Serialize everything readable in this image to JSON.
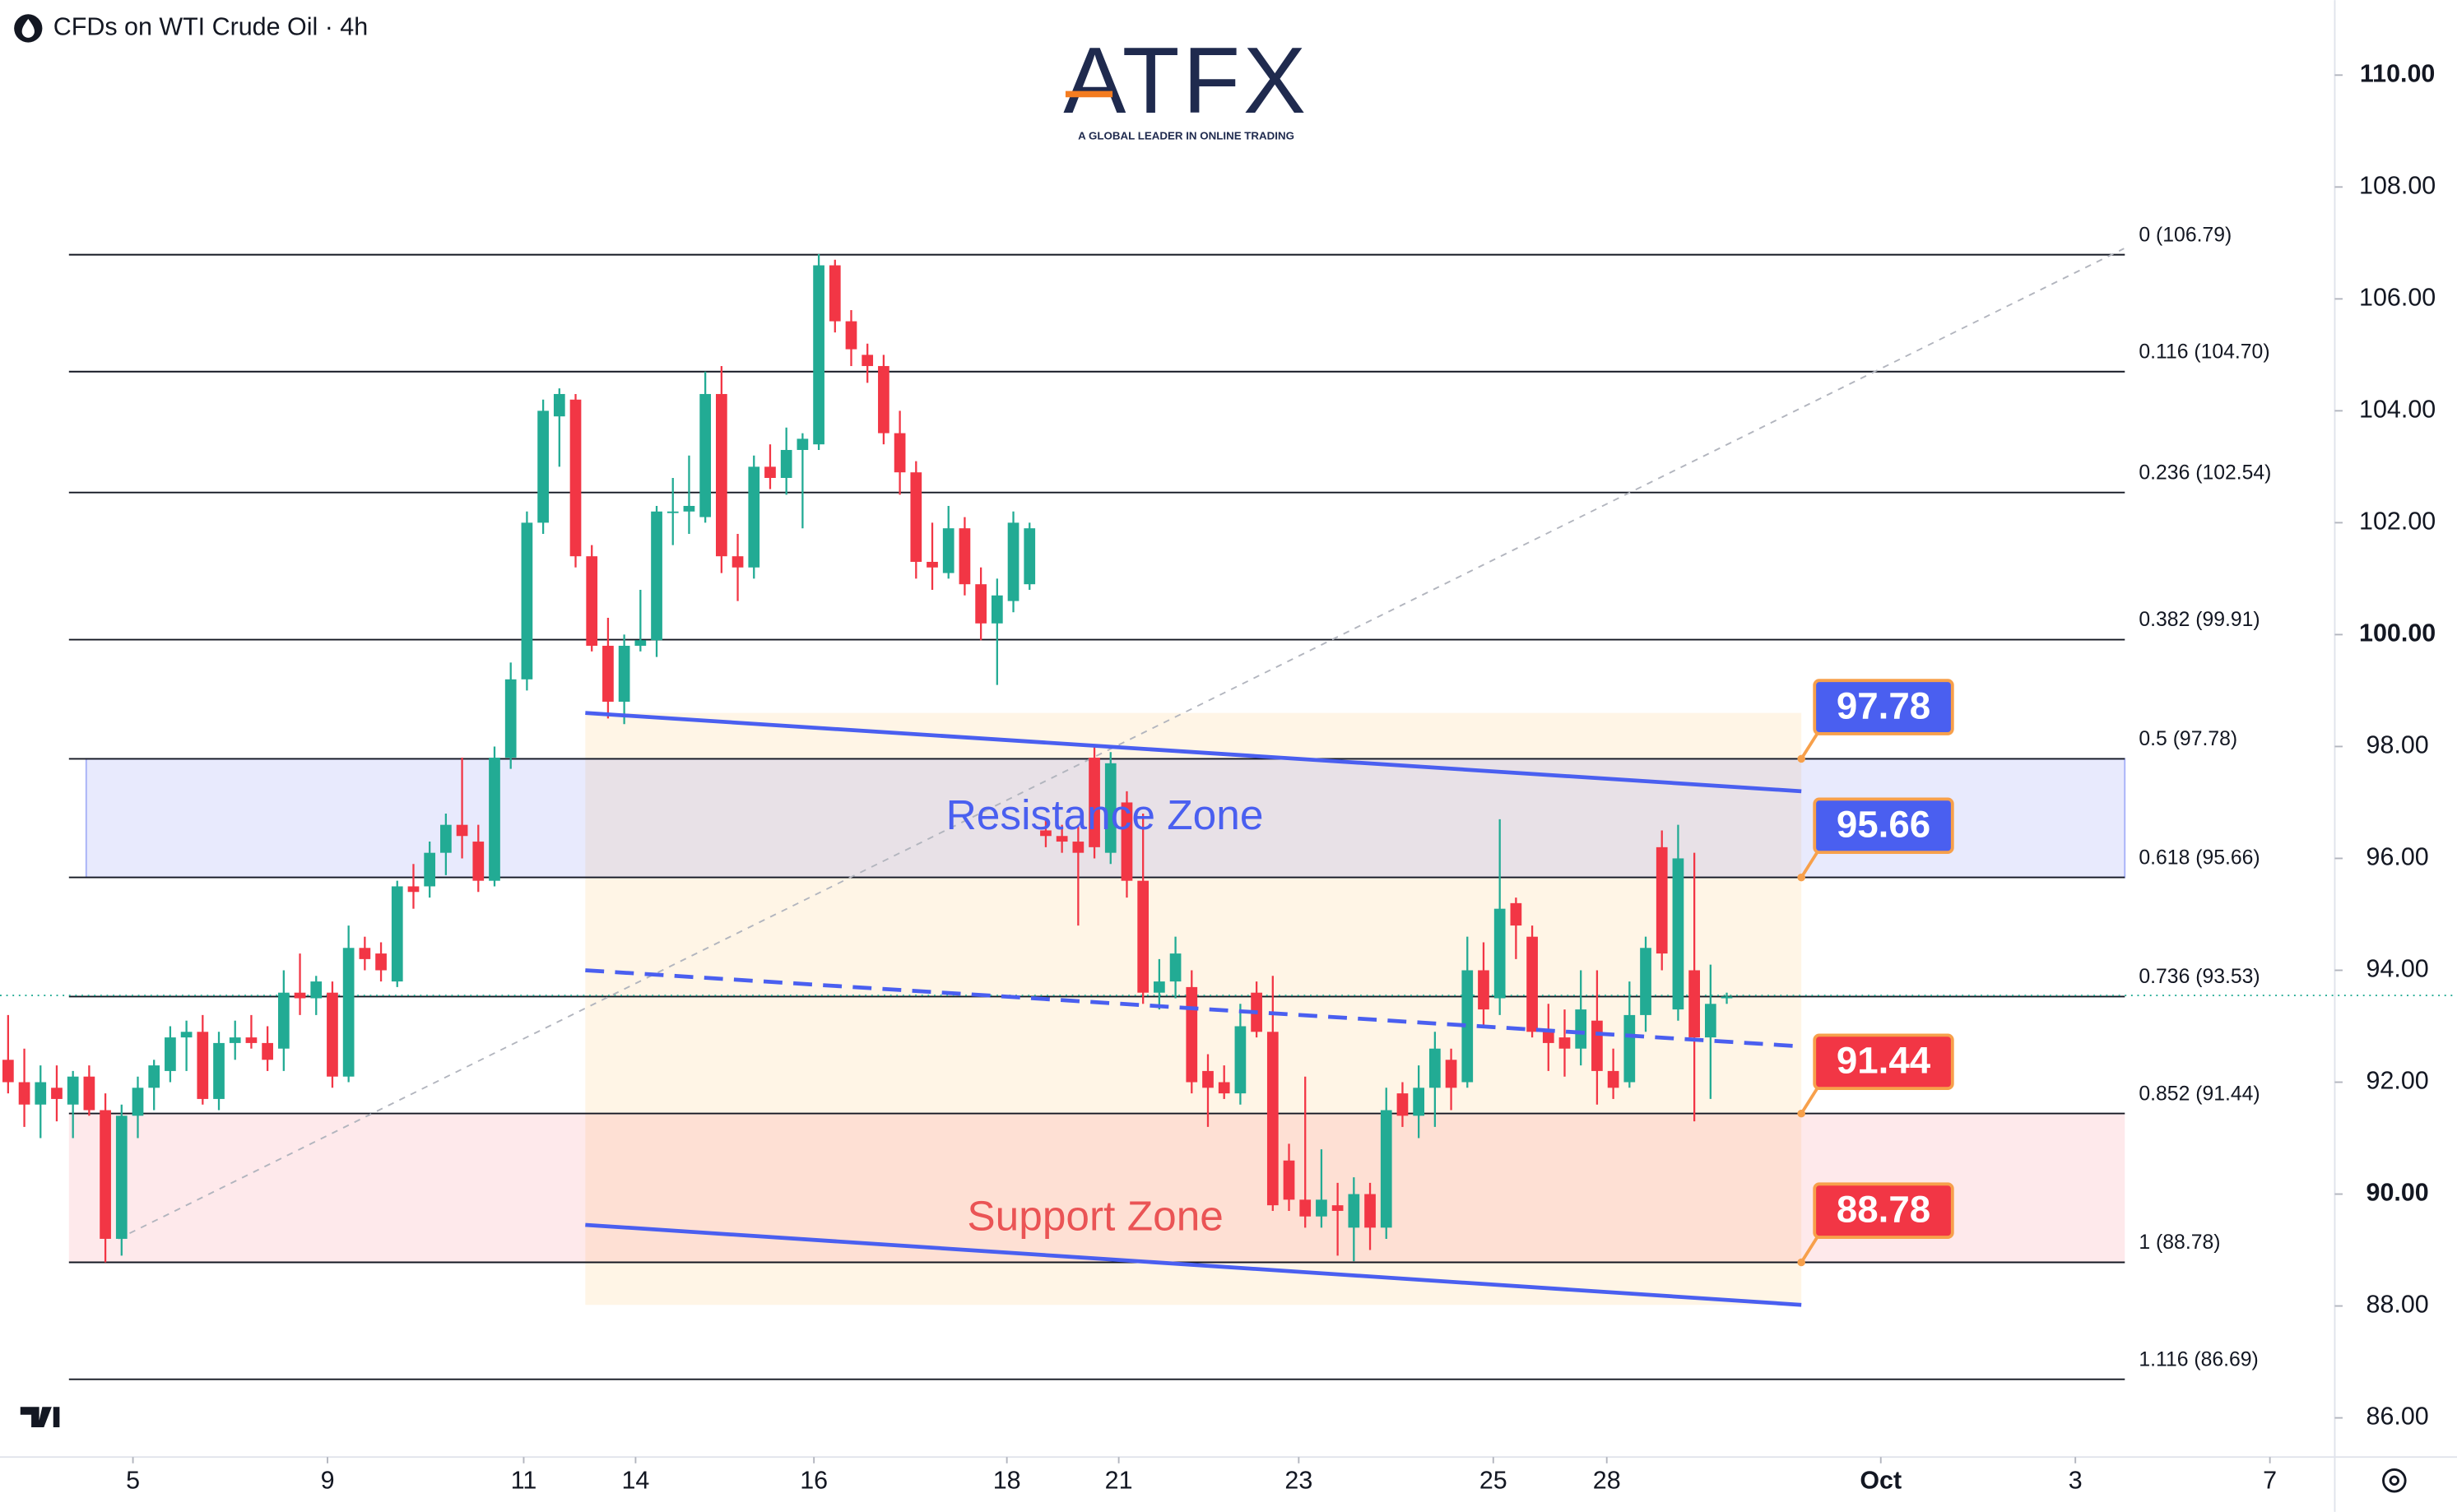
{
  "header": {
    "title": "CFDs on WTI Crude Oil · 4h"
  },
  "logo": {
    "name": "ATFX",
    "tagline": "A GLOBAL LEADER IN ONLINE TRADING"
  },
  "chart_data": {
    "type": "candlestick",
    "up_color": "#22ab94",
    "down_color": "#f23645",
    "open": [
      92.4,
      92.0,
      91.6,
      91.9,
      91.6,
      92.1,
      91.5,
      89.2,
      91.4,
      91.9,
      92.2,
      92.8,
      92.9,
      91.7,
      92.7,
      92.8,
      92.7,
      92.6,
      93.6,
      93.5,
      93.6,
      92.1,
      94.4,
      94.3,
      93.8,
      95.5,
      95.5,
      96.1,
      96.6,
      96.3,
      95.6,
      97.8,
      99.2,
      102.0,
      103.9,
      104.2,
      101.4,
      99.8,
      98.8,
      99.8,
      99.9,
      102.2,
      102.2,
      102.1,
      104.3,
      101.4,
      101.2,
      103.0,
      102.8,
      103.3,
      103.4,
      106.6,
      105.6,
      105.0,
      104.8,
      103.6,
      102.9,
      101.3,
      101.1,
      101.9,
      100.9,
      100.2,
      100.6,
      100.9,
      96.5,
      96.4,
      96.3,
      97.8,
      96.1,
      97.0,
      95.6,
      93.6,
      93.8,
      93.7,
      92.2,
      92.0,
      91.8,
      93.6,
      92.9,
      90.6,
      89.9,
      89.6,
      89.8,
      89.4,
      90.0,
      89.4,
      91.8,
      91.4,
      91.9,
      92.4,
      92.0,
      94.0,
      93.5,
      95.2,
      94.6,
      92.9,
      92.8,
      92.6,
      93.1,
      92.2,
      92.0,
      93.2,
      96.2,
      93.3,
      94.0,
      92.8,
      93.5
    ],
    "high": [
      93.2,
      92.6,
      92.3,
      92.3,
      92.2,
      92.3,
      91.8,
      91.6,
      92.1,
      92.4,
      93.0,
      93.1,
      93.2,
      92.9,
      93.1,
      93.2,
      93.0,
      94.0,
      94.3,
      93.9,
      93.8,
      94.8,
      94.6,
      94.5,
      95.6,
      95.9,
      96.3,
      96.8,
      97.8,
      96.6,
      98.0,
      99.5,
      102.2,
      104.2,
      104.4,
      104.3,
      101.6,
      100.3,
      100.0,
      100.8,
      102.3,
      102.8,
      103.2,
      104.7,
      104.8,
      101.8,
      103.2,
      103.4,
      103.7,
      103.6,
      106.8,
      106.7,
      105.8,
      105.2,
      105.0,
      104.0,
      103.1,
      102.0,
      102.3,
      102.1,
      101.2,
      101.0,
      102.2,
      102.0,
      96.7,
      96.6,
      96.6,
      98.0,
      97.9,
      97.2,
      96.8,
      94.2,
      94.6,
      94.0,
      92.5,
      92.3,
      93.4,
      93.8,
      93.9,
      90.9,
      92.1,
      90.8,
      90.2,
      90.3,
      90.2,
      91.9,
      92.0,
      92.3,
      92.9,
      92.6,
      94.6,
      94.5,
      96.7,
      95.3,
      94.8,
      93.4,
      93.3,
      94.0,
      94.0,
      92.6,
      93.8,
      94.6,
      96.5,
      96.6,
      96.1,
      94.1,
      93.6
    ],
    "low": [
      91.8,
      91.2,
      91.0,
      91.3,
      91.0,
      91.4,
      88.78,
      88.9,
      91.0,
      91.5,
      92.0,
      92.2,
      91.6,
      91.5,
      92.4,
      92.6,
      92.2,
      92.2,
      93.2,
      93.2,
      91.9,
      92.0,
      94.0,
      93.8,
      93.7,
      95.1,
      95.3,
      95.7,
      96.0,
      95.4,
      95.5,
      97.6,
      99.0,
      101.8,
      103.0,
      101.2,
      99.7,
      98.5,
      98.4,
      99.7,
      99.6,
      101.6,
      101.8,
      102.0,
      101.1,
      100.6,
      101.0,
      102.6,
      102.5,
      101.9,
      103.3,
      105.4,
      104.8,
      104.5,
      103.4,
      102.5,
      101.0,
      100.8,
      101.0,
      100.7,
      99.9,
      99.1,
      100.4,
      100.8,
      96.2,
      96.1,
      94.8,
      96.0,
      95.9,
      95.3,
      93.4,
      93.3,
      93.5,
      91.8,
      91.2,
      91.7,
      91.6,
      92.8,
      89.7,
      89.7,
      89.4,
      89.4,
      88.9,
      88.8,
      89.0,
      89.2,
      91.2,
      91.0,
      91.2,
      91.5,
      91.9,
      93.0,
      93.2,
      94.2,
      92.8,
      92.2,
      92.1,
      92.3,
      91.6,
      91.7,
      91.9,
      92.9,
      94.0,
      93.1,
      91.3,
      91.7,
      93.4
    ],
    "close": [
      92.0,
      91.6,
      92.0,
      91.7,
      92.1,
      91.5,
      89.2,
      91.4,
      91.9,
      92.3,
      92.8,
      92.9,
      91.7,
      92.7,
      92.8,
      92.7,
      92.4,
      93.6,
      93.5,
      93.8,
      92.1,
      94.4,
      94.2,
      94.0,
      95.5,
      95.4,
      96.1,
      96.6,
      96.4,
      95.6,
      97.8,
      99.2,
      102.0,
      104.0,
      104.3,
      101.4,
      99.8,
      98.8,
      99.8,
      99.9,
      102.2,
      102.2,
      102.3,
      104.3,
      101.4,
      101.2,
      103.0,
      102.8,
      103.3,
      103.5,
      106.6,
      105.6,
      105.1,
      104.8,
      103.6,
      102.9,
      101.3,
      101.2,
      101.9,
      100.9,
      100.2,
      100.7,
      102.0,
      101.9,
      96.4,
      96.3,
      96.1,
      96.2,
      97.7,
      95.6,
      93.6,
      93.8,
      94.3,
      92.0,
      91.9,
      91.8,
      93.0,
      92.9,
      89.8,
      89.9,
      89.6,
      89.9,
      89.7,
      90.0,
      89.4,
      91.5,
      91.4,
      91.9,
      92.6,
      91.9,
      94.0,
      93.3,
      95.1,
      94.8,
      92.9,
      92.7,
      92.6,
      93.3,
      92.2,
      91.9,
      93.2,
      94.4,
      94.3,
      96.0,
      92.8,
      93.4,
      93.53
    ],
    "xlim": [
      -0.5,
      143.5
    ],
    "xticks": [
      {
        "value": 7.7,
        "label": "5"
      },
      {
        "value": 19.7,
        "label": "9"
      },
      {
        "value": 31.8,
        "label": "11"
      },
      {
        "value": 38.7,
        "label": "14"
      },
      {
        "value": 49.7,
        "label": "16"
      },
      {
        "value": 61.6,
        "label": "18"
      },
      {
        "value": 68.5,
        "label": "21"
      },
      {
        "value": 79.6,
        "label": "23"
      },
      {
        "value": 91.6,
        "label": "25"
      },
      {
        "value": 98.6,
        "label": "28"
      },
      {
        "value": 115.5,
        "label": "Oct"
      },
      {
        "value": 127.5,
        "label": "3"
      },
      {
        "value": 139.5,
        "label": "7"
      }
    ],
    "ylim": [
      85.3,
      111.34
    ],
    "yticks": [
      {
        "value": 86,
        "label": "86.00"
      },
      {
        "value": 88,
        "label": "88.00"
      },
      {
        "value": 90,
        "label": "90.00"
      },
      {
        "value": 92,
        "label": "92.00"
      },
      {
        "value": 94,
        "label": "94.00"
      },
      {
        "value": 96,
        "label": "96.00"
      },
      {
        "value": 98,
        "label": "98.00"
      },
      {
        "value": 100,
        "label": "100.00"
      },
      {
        "value": 102,
        "label": "102.00"
      },
      {
        "value": 104,
        "label": "104.00"
      },
      {
        "value": 106,
        "label": "106.00"
      },
      {
        "value": 108,
        "label": "108.00"
      },
      {
        "value": 110,
        "label": "110.00"
      }
    ],
    "last_price": 93.55,
    "fib_levels": [
      {
        "label": "0 (106.79)",
        "value": 106.79
      },
      {
        "label": "0.116 (104.70)",
        "value": 104.7
      },
      {
        "label": "0.236 (102.54)",
        "value": 102.54
      },
      {
        "label": "0.382 (99.91)",
        "value": 99.91
      },
      {
        "label": "0.5 (97.78)",
        "value": 97.78
      },
      {
        "label": "0.618 (95.66)",
        "value": 95.66
      },
      {
        "label": "0.736 (93.53)",
        "value": 93.53
      },
      {
        "label": "0.852 (91.44)",
        "value": 91.44
      },
      {
        "label": "1 (88.78)",
        "value": 88.78
      },
      {
        "label": "1.116 (86.69)",
        "value": 86.69
      }
    ],
    "fib_trend": {
      "x": [
        6.8,
        130.5
      ],
      "y": [
        89.2,
        106.9
      ]
    },
    "zones": [
      {
        "label": "Resistance Zone",
        "low": 95.66,
        "high": 97.78,
        "color": "#4a5ff0"
      },
      {
        "label": "Support Zone",
        "low": 88.78,
        "high": 91.44,
        "color": "#ea5455"
      }
    ],
    "channel": {
      "x": [
        35.6,
        110.6
      ],
      "upper": [
        98.6,
        97.2
      ],
      "middle": [
        94.0,
        92.64
      ],
      "lower": [
        89.45,
        88.02
      ],
      "color": "#4a5ff0"
    },
    "price_tags": [
      {
        "value": 97.78,
        "color": "#4a5ff0"
      },
      {
        "value": 95.66,
        "color": "#4a5ff0"
      },
      {
        "value": 91.44,
        "color": "#f23645"
      },
      {
        "value": 88.78,
        "color": "#f23645"
      }
    ]
  }
}
